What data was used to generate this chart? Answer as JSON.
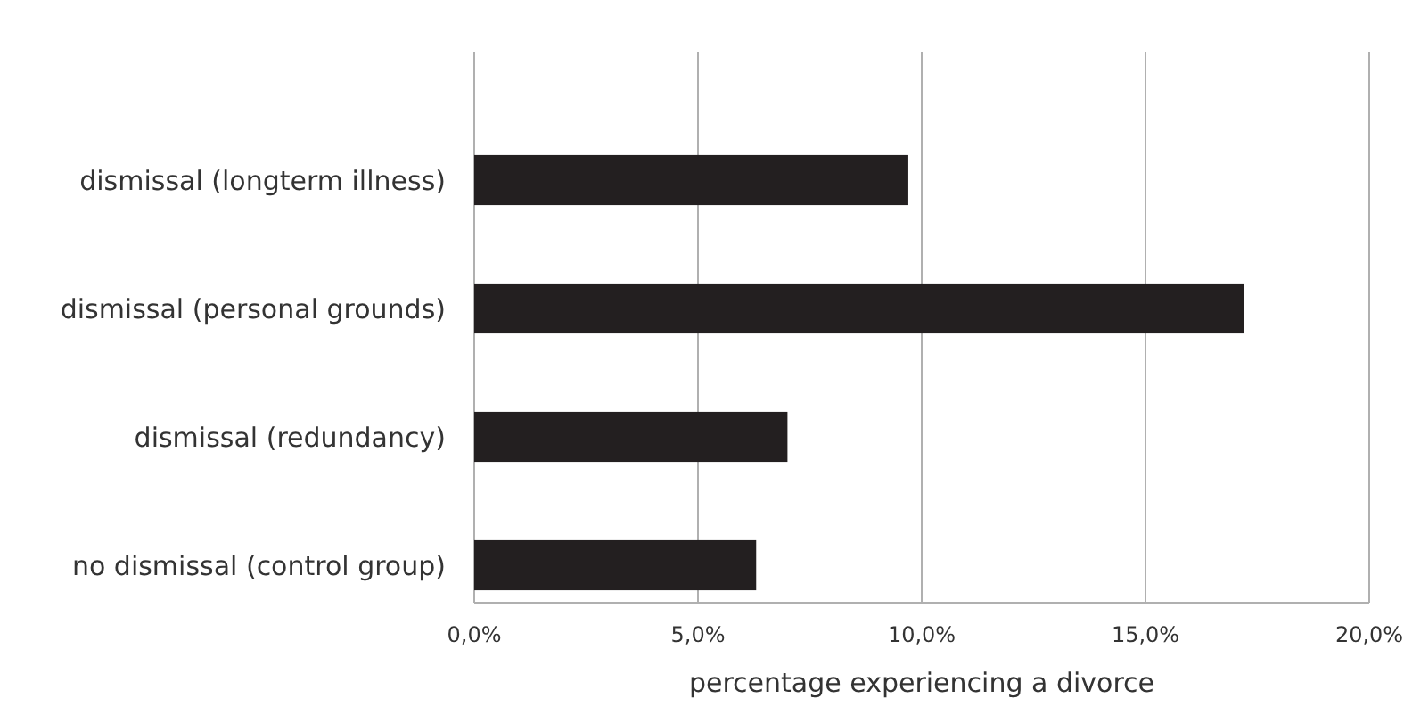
{
  "chart_data": {
    "type": "bar",
    "orientation": "horizontal",
    "xlabel": "percentage experiencing a divorce",
    "categories": [
      "dismissal (longterm illness)",
      "dismissal (personal grounds)",
      "dismissal (redundancy)",
      "no dismissal (control group)"
    ],
    "values": [
      9.7,
      17.2,
      7.0,
      6.3
    ],
    "color": "#231f20",
    "xlim": [
      0,
      20
    ],
    "xticks": [
      {
        "value": 0,
        "label": "0,0%"
      },
      {
        "value": 5,
        "label": "5,0%"
      },
      {
        "value": 10,
        "label": "10,0%"
      },
      {
        "value": 15,
        "label": "15,0%"
      },
      {
        "value": 20,
        "label": "20,0%"
      }
    ],
    "grid": "x"
  }
}
